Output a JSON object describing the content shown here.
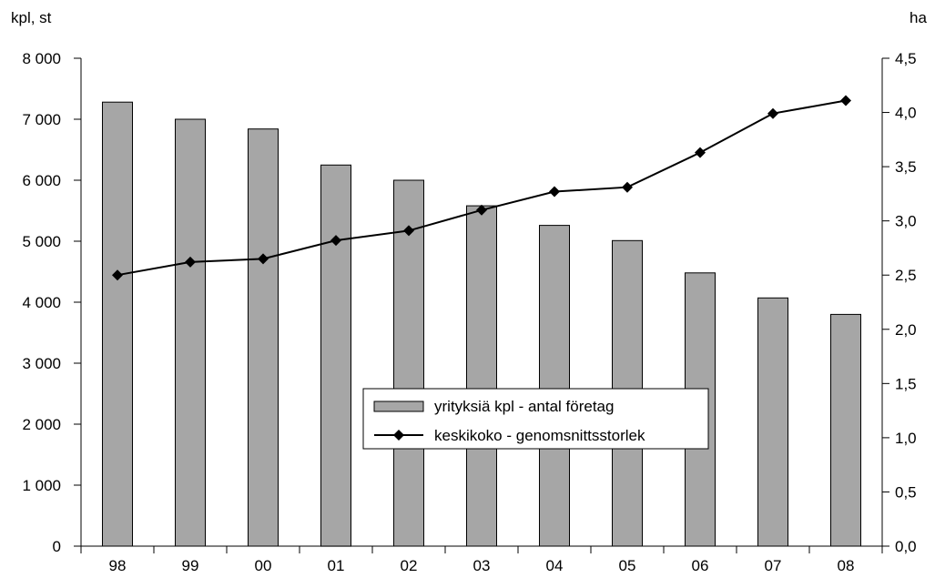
{
  "chart_data": {
    "type": "bar",
    "categories": [
      "98",
      "99",
      "00",
      "01",
      "02",
      "03",
      "04",
      "05",
      "06",
      "07",
      "08"
    ],
    "series": [
      {
        "name": "yrityksiä kpl - antal företag",
        "type": "bar",
        "axis": "left",
        "color": "#a6a6a6",
        "values": [
          7280,
          7000,
          6840,
          6250,
          6000,
          5580,
          5260,
          5010,
          4480,
          4070,
          3800
        ]
      },
      {
        "name": "keskikoko - genomsnittsstorlek",
        "type": "line",
        "axis": "right",
        "color": "#000000",
        "marker": "diamond",
        "values": [
          2.5,
          2.62,
          2.65,
          2.82,
          2.91,
          3.1,
          3.27,
          3.31,
          3.63,
          3.99,
          4.11
        ]
      }
    ],
    "left_axis": {
      "unit_label": "kpl, st",
      "ylim": [
        0,
        8000
      ],
      "ticks": [
        {
          "value": 0,
          "label": "0"
        },
        {
          "value": 1000,
          "label": "1 000"
        },
        {
          "value": 2000,
          "label": "2 000"
        },
        {
          "value": 3000,
          "label": "3 000"
        },
        {
          "value": 4000,
          "label": "4 000"
        },
        {
          "value": 5000,
          "label": "5 000"
        },
        {
          "value": 6000,
          "label": "6 000"
        },
        {
          "value": 7000,
          "label": "7 000"
        },
        {
          "value": 8000,
          "label": "8 000"
        }
      ]
    },
    "right_axis": {
      "unit_label": "ha",
      "ylim": [
        0,
        4.5
      ],
      "ticks": [
        {
          "value": 0,
          "label": "0,0"
        },
        {
          "value": 0.5,
          "label": "0,5"
        },
        {
          "value": 1.0,
          "label": "1,0"
        },
        {
          "value": 1.5,
          "label": "1,5"
        },
        {
          "value": 2.0,
          "label": "2,0"
        },
        {
          "value": 2.5,
          "label": "2,5"
        },
        {
          "value": 3.0,
          "label": "3,0"
        },
        {
          "value": 3.5,
          "label": "3,5"
        },
        {
          "value": 4.0,
          "label": "4,0"
        },
        {
          "value": 4.5,
          "label": "4,5"
        }
      ]
    },
    "grid": false,
    "legend": {
      "placement": "center-bottom",
      "entries": [
        "yrityksiä kpl - antal företag",
        "keskikoko - genomsnittsstorlek"
      ]
    }
  }
}
